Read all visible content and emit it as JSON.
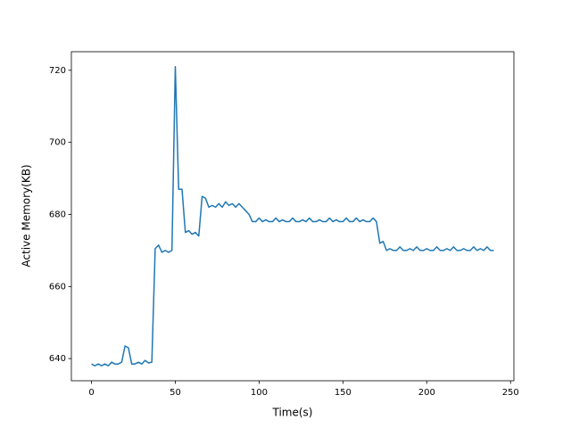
{
  "chart_data": {
    "type": "line",
    "xlabel": "Time(s)",
    "ylabel": "Active Memory(KB)",
    "x": [
      0,
      2,
      4,
      6,
      8,
      10,
      12,
      14,
      16,
      18,
      20,
      22,
      24,
      26,
      28,
      30,
      32,
      34,
      36,
      38,
      40,
      42,
      44,
      46,
      48,
      50,
      52,
      54,
      56,
      58,
      60,
      62,
      64,
      66,
      68,
      70,
      72,
      74,
      76,
      78,
      80,
      82,
      84,
      86,
      88,
      90,
      92,
      94,
      96,
      98,
      100,
      102,
      104,
      106,
      108,
      110,
      112,
      114,
      116,
      118,
      120,
      122,
      124,
      126,
      128,
      130,
      132,
      134,
      136,
      138,
      140,
      142,
      144,
      146,
      148,
      150,
      152,
      154,
      156,
      158,
      160,
      162,
      164,
      166,
      168,
      170,
      172,
      174,
      176,
      178,
      180,
      182,
      184,
      186,
      188,
      190,
      192,
      194,
      196,
      198,
      200,
      202,
      204,
      206,
      208,
      210,
      212,
      214,
      216,
      218,
      220,
      222,
      224,
      226,
      228,
      230,
      232,
      234,
      236,
      238,
      240
    ],
    "series": [
      {
        "color": "#1f77b4",
        "values": [
          638.5,
          638,
          638.5,
          638,
          638.5,
          638,
          639,
          638.5,
          638.5,
          639,
          643.5,
          643,
          638.5,
          638.5,
          639,
          638.5,
          639.5,
          638.8,
          639,
          670.5,
          671.5,
          669.5,
          670,
          669.5,
          670,
          721,
          687,
          687,
          675,
          675.5,
          674.5,
          675,
          674,
          685,
          684.5,
          682,
          682.5,
          682,
          683,
          682,
          683.5,
          682.5,
          683,
          682,
          683,
          682,
          681,
          680,
          678,
          678,
          679,
          678,
          678.5,
          678,
          678,
          679,
          678,
          678.5,
          678,
          678,
          679,
          678,
          678,
          678.5,
          678,
          679,
          678,
          678,
          678.5,
          678,
          678,
          679,
          678,
          678.5,
          678,
          678,
          679,
          678,
          678,
          679,
          678,
          678.5,
          678,
          678,
          679,
          678,
          672,
          672.5,
          670,
          670.5,
          670,
          670,
          671,
          670,
          670,
          670.5,
          670,
          671,
          670,
          670,
          670.5,
          670,
          670,
          671,
          670,
          670,
          670.5,
          670,
          671,
          670,
          670,
          670.5,
          670,
          670,
          671,
          670,
          670.5,
          670,
          671,
          670,
          670
        ]
      }
    ],
    "xlim": [
      -12,
      252
    ],
    "xticks": [
      0,
      50,
      100,
      150,
      200,
      250
    ],
    "ylim": [
      633.85,
      725.15
    ],
    "yticks": [
      640,
      660,
      680,
      700,
      720
    ]
  }
}
